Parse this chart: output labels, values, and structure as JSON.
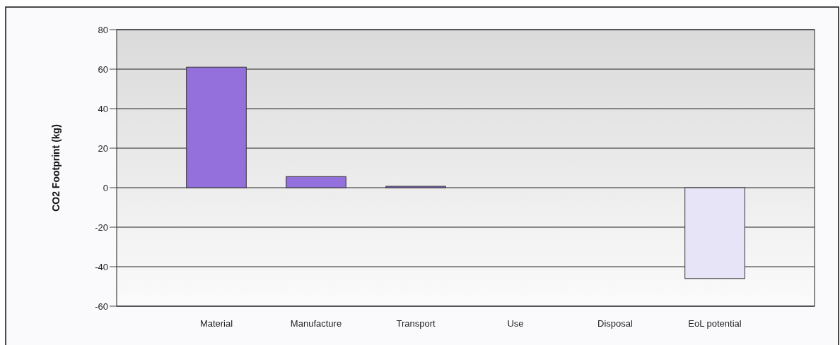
{
  "chart_data": {
    "type": "bar",
    "ylabel": "CO2 Footprint (kg)",
    "categories": [
      "Material",
      "Manufacture",
      "Transport",
      "Use",
      "Disposal",
      "EoL potential"
    ],
    "values": [
      61,
      5.6,
      0.7,
      0,
      0,
      -46
    ],
    "colors": [
      "#9370db",
      "#9370db",
      "#9370db",
      "#9370db",
      "#9370db",
      "#e8e4f8"
    ],
    "ylim": [
      -60,
      80
    ],
    "yticks": [
      -60,
      -40,
      -20,
      0,
      20,
      40,
      60,
      80
    ],
    "grid": "y"
  }
}
